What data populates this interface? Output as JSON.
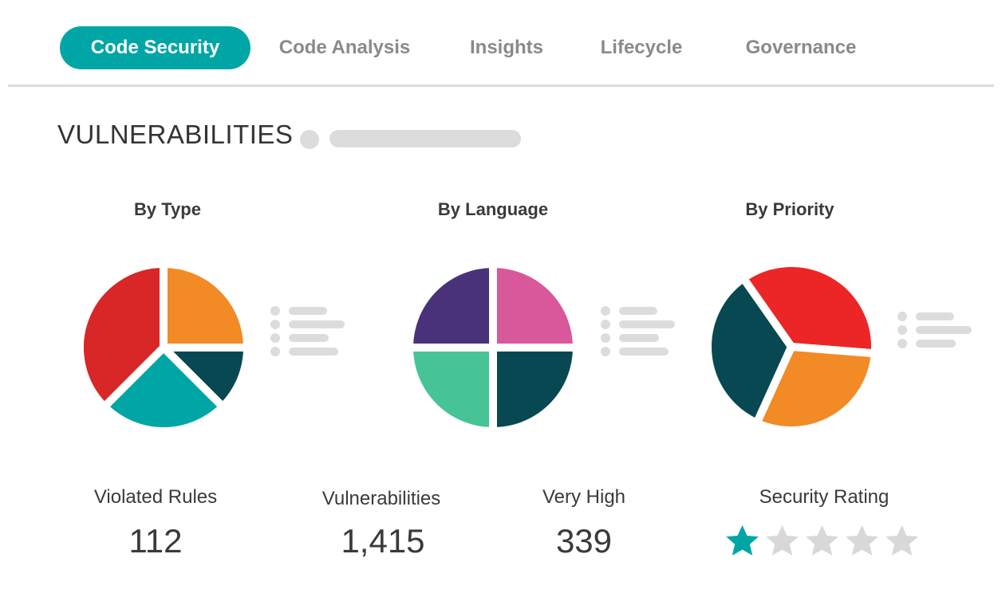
{
  "tabs": [
    {
      "label": "Code Security",
      "active": true
    },
    {
      "label": "Code Analysis",
      "active": false
    },
    {
      "label": "Insights",
      "active": false
    },
    {
      "label": "Lifecycle",
      "active": false
    },
    {
      "label": "Governance",
      "active": false
    }
  ],
  "section": {
    "title": "VULNERABILITIES"
  },
  "chart_data": [
    {
      "type": "pie",
      "title": "By Type",
      "values": [
        25,
        12.5,
        25,
        37.5
      ],
      "colors": [
        "#f28a25",
        "#074852",
        "#00a6a6",
        "#d92626"
      ],
      "legend_items": 4
    },
    {
      "type": "pie",
      "title": "By Language",
      "values": [
        25,
        25,
        25,
        25
      ],
      "colors": [
        "#d9579b",
        "#074852",
        "#47c496",
        "#4a327a"
      ],
      "legend_items": 4
    },
    {
      "type": "pie",
      "title": "By Priority",
      "values": [
        36,
        30.5,
        33.5
      ],
      "start_angle": -35,
      "colors": [
        "#ec2626",
        "#f28a25",
        "#074852"
      ],
      "legend_items": 3
    }
  ],
  "stats": [
    {
      "label": "Violated Rules",
      "value": "112"
    },
    {
      "label": "Vulnerabilities",
      "value": "1,415"
    },
    {
      "label": "Very High",
      "value": "339"
    },
    {
      "label": "Security Rating",
      "rating": 1,
      "max": 5
    }
  ],
  "colors": {
    "accent": "#00a6a6",
    "placeholder": "#dcdcdc",
    "star_off": "#d8d8d8"
  }
}
